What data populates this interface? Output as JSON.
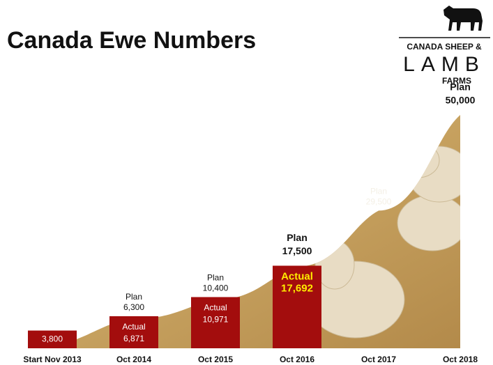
{
  "title": "Canada Ewe Numbers",
  "logo": {
    "line1": "CANADA SHEEP &",
    "line2": "LAMB",
    "line3": "FARMS"
  },
  "chart_data": {
    "type": "bar",
    "categories": [
      "Start Nov 2013",
      "Oct 2014",
      "Oct 2015",
      "Oct 2016",
      "Oct 2017",
      "Oct 2018"
    ],
    "series": [
      {
        "name": "Actual",
        "color": "#a30d0d",
        "values": [
          3800,
          6871,
          10971,
          17692,
          null,
          null
        ],
        "value_labels": [
          "3,800",
          "6,871",
          "10,971",
          "17,692",
          null,
          null
        ]
      },
      {
        "name": "Plan",
        "color": "#c9a76a",
        "values": [
          null,
          6300,
          10400,
          17500,
          29500,
          50000
        ],
        "value_labels": [
          null,
          "6,300",
          "10,400",
          "17,500",
          "29,500",
          "50,000"
        ]
      }
    ]
  }
}
